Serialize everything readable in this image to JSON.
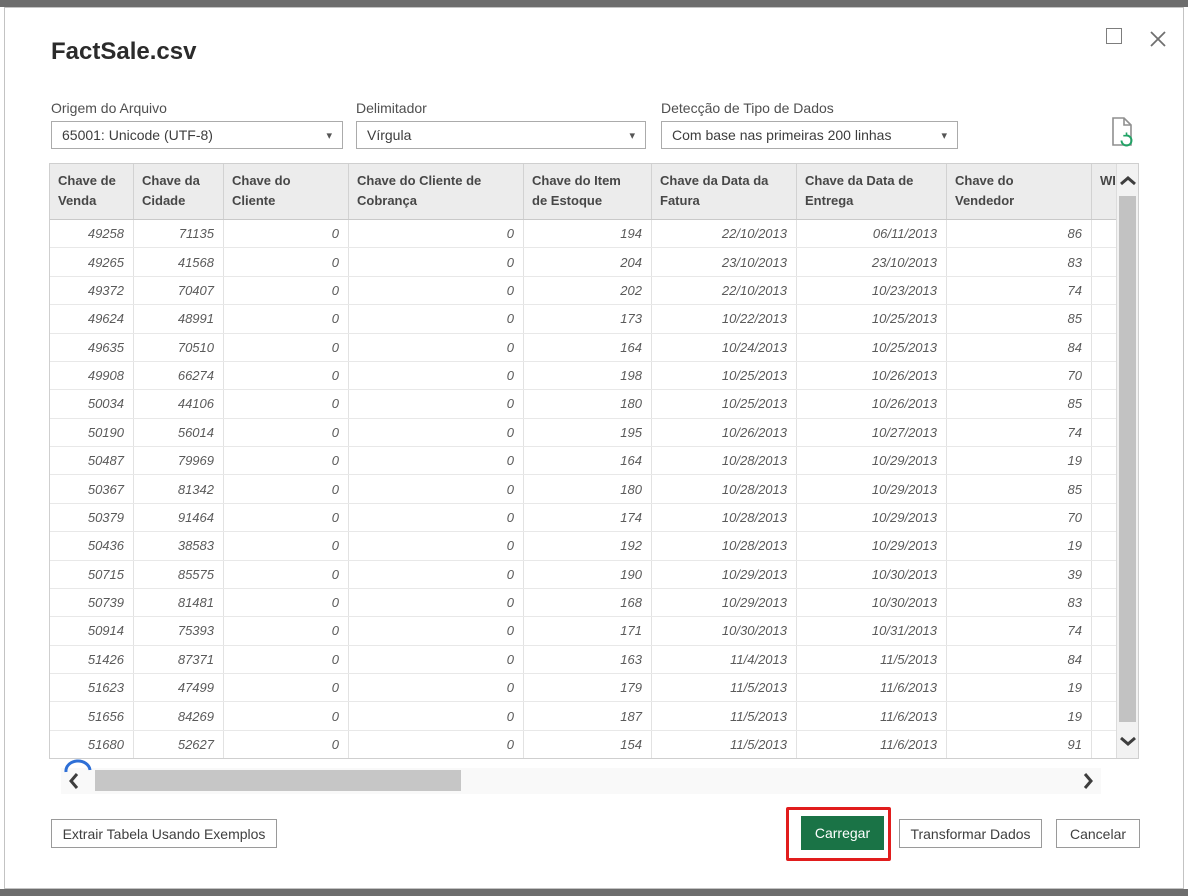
{
  "window": {
    "title": "FactSale.csv",
    "icons": {
      "maximize": "maximize-icon",
      "close": "close-icon"
    }
  },
  "fields": {
    "file_origin": {
      "label": "Origem do Arquivo",
      "value": "65001: Unicode (UTF-8)"
    },
    "delimiter": {
      "label": "Delimitador",
      "value": "Vírgula"
    },
    "type_detection": {
      "label": "Detecção de Tipo de Dados",
      "value": "Com base nas primeiras 200 linhas"
    }
  },
  "icons": {
    "refresh_preview": "refresh-preview-icon",
    "dropdown_caret": "chevron-down-icon"
  },
  "table": {
    "columns": [
      {
        "label": "Chave de Venda",
        "lines": [
          "Chave de",
          "Venda"
        ]
      },
      {
        "label": "Chave da Cidade",
        "lines": [
          "Chave da",
          "Cidade"
        ]
      },
      {
        "label": "Chave do Cliente",
        "lines": [
          "Chave do",
          "Cliente"
        ]
      },
      {
        "label": "Chave do Cliente de Cobrança",
        "lines": [
          "Chave do Cliente de",
          "Cobrança"
        ]
      },
      {
        "label": "Chave do Item de Estoque",
        "lines": [
          "Chave do Item",
          "de Estoque"
        ]
      },
      {
        "label": "Chave da Data da Fatura",
        "lines": [
          "Chave da Data da",
          "Fatura"
        ]
      },
      {
        "label": "Chave da Data de Entrega",
        "lines": [
          "Chave da Data de",
          "Entrega"
        ]
      },
      {
        "label": "Chave do Vendedor",
        "lines": [
          "Chave do",
          "Vendedor"
        ]
      },
      {
        "label": "WI",
        "lines": [
          "WI"
        ],
        "clipped": true
      }
    ],
    "rows": [
      [
        "49258",
        "71135",
        "0",
        "0",
        "194",
        "22/10/2013",
        "06/11/2013",
        "86"
      ],
      [
        "49265",
        "41568",
        "0",
        "0",
        "204",
        "23/10/2013",
        "23/10/2013",
        "83"
      ],
      [
        "49372",
        "70407",
        "0",
        "0",
        "202",
        "22/10/2013",
        "10/23/2013",
        "74"
      ],
      [
        "49624",
        "48991",
        "0",
        "0",
        "173",
        "10/22/2013",
        "10/25/2013",
        "85"
      ],
      [
        "49635",
        "70510",
        "0",
        "0",
        "164",
        "10/24/2013",
        "10/25/2013",
        "84"
      ],
      [
        "49908",
        "66274",
        "0",
        "0",
        "198",
        "10/25/2013",
        "10/26/2013",
        "70"
      ],
      [
        "50034",
        "44106",
        "0",
        "0",
        "180",
        "10/25/2013",
        "10/26/2013",
        "85"
      ],
      [
        "50190",
        "56014",
        "0",
        "0",
        "195",
        "10/26/2013",
        "10/27/2013",
        "74"
      ],
      [
        "50487",
        "79969",
        "0",
        "0",
        "164",
        "10/28/2013",
        "10/29/2013",
        "19"
      ],
      [
        "50367",
        "81342",
        "0",
        "0",
        "180",
        "10/28/2013",
        "10/29/2013",
        "85"
      ],
      [
        "50379",
        "91464",
        "0",
        "0",
        "174",
        "10/28/2013",
        "10/29/2013",
        "70"
      ],
      [
        "50436",
        "38583",
        "0",
        "0",
        "192",
        "10/28/2013",
        "10/29/2013",
        "19"
      ],
      [
        "50715",
        "85575",
        "0",
        "0",
        "190",
        "10/29/2013",
        "10/30/2013",
        "39"
      ],
      [
        "50739",
        "81481",
        "0",
        "0",
        "168",
        "10/29/2013",
        "10/30/2013",
        "83"
      ],
      [
        "50914",
        "75393",
        "0",
        "0",
        "171",
        "10/30/2013",
        "10/31/2013",
        "74"
      ],
      [
        "51426",
        "87371",
        "0",
        "0",
        "163",
        "11/4/2013",
        "11/5/2013",
        "84"
      ],
      [
        "51623",
        "47499",
        "0",
        "0",
        "179",
        "11/5/2013",
        "11/6/2013",
        "19"
      ],
      [
        "51656",
        "84269",
        "0",
        "0",
        "187",
        "11/5/2013",
        "11/6/2013",
        "19"
      ],
      [
        "51680",
        "52627",
        "0",
        "0",
        "154",
        "11/5/2013",
        "11/6/2013",
        "91"
      ]
    ]
  },
  "footer": {
    "extract_examples_button": "Extrair Tabela Usando Exemplos",
    "load_button": "Carregar",
    "transform_button": "Transformar Dados",
    "cancel_button": "Cancelar"
  },
  "colors": {
    "load_button_green": "#1a7346",
    "annotation_red": "#e11d1d",
    "annotation_blue": "#2e6fd6",
    "refresh_icon_green": "#21a366"
  }
}
